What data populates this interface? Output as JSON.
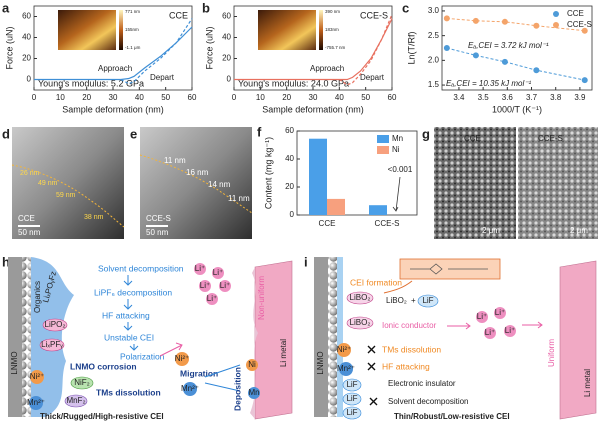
{
  "chart_data": [
    {
      "panel": "a",
      "type": "line",
      "label": "CCE",
      "annotation": "Young's modulus: 5.2 GPa",
      "xlabel": "Sample deformation (nm)",
      "ylabel": "Force (uN)",
      "x": [
        0,
        10,
        20,
        30,
        33,
        36,
        38,
        42,
        48,
        54,
        60
      ],
      "xlim": [
        0,
        60
      ],
      "xticks": [
        0,
        10,
        20,
        30,
        40,
        50,
        60
      ],
      "ylim": [
        -10,
        70
      ],
      "yticks": [
        0,
        20,
        40,
        60
      ],
      "series": [
        {
          "name": "Approach",
          "color": "#3f8fd6",
          "style": "solid",
          "values": [
            0,
            0,
            0,
            0,
            0,
            1,
            3,
            11,
            22,
            35,
            50
          ]
        },
        {
          "name": "Depart",
          "color": "#3f8fd6",
          "style": "dashed",
          "values": [
            null,
            null,
            null,
            null,
            0,
            -4,
            -2,
            8,
            20,
            35,
            58
          ]
        }
      ],
      "inset_labels": [
        "771 nm",
        "155nm",
        "-1.1 μm"
      ]
    },
    {
      "panel": "b",
      "type": "line",
      "label": "CCE-S",
      "annotation": "Young's modulus: 24.0 GPa",
      "xlabel": "Sample deformation (nm)",
      "ylabel": "Force (uN)",
      "x": [
        0,
        10,
        20,
        30,
        40,
        43,
        45,
        48,
        52,
        56,
        60
      ],
      "xlim": [
        0,
        60
      ],
      "xticks": [
        0,
        10,
        20,
        30,
        40,
        50,
        60
      ],
      "ylim": [
        -10,
        70
      ],
      "yticks": [
        0,
        20,
        40,
        60
      ],
      "series": [
        {
          "name": "Approach",
          "color": "#e8705f",
          "style": "solid",
          "values": [
            0,
            0,
            0,
            0,
            0,
            0,
            2,
            8,
            20,
            38,
            58
          ]
        },
        {
          "name": "Depart",
          "color": "#e8705f",
          "style": "dashed",
          "values": [
            null,
            null,
            null,
            null,
            0,
            -5,
            -3,
            5,
            18,
            38,
            62
          ]
        }
      ],
      "inset_labels": [
        "390 nm",
        "183nm",
        "-755.7 nm"
      ]
    },
    {
      "panel": "c",
      "type": "scatter",
      "xlabel": "1000/T (K⁻¹)",
      "ylabel": "Ln(T/Rf)",
      "x": [
        3.35,
        3.47,
        3.59,
        3.72,
        3.92
      ],
      "xlim": [
        3.33,
        3.95
      ],
      "xticks": [
        3.4,
        3.5,
        3.6,
        3.7,
        3.8,
        3.9
      ],
      "ylim": [
        1.4,
        3.1
      ],
      "yticks": [
        1.5,
        {
          "value": 2,
          "label": "2.0"
        },
        2.5,
        {
          "value": 3,
          "label": "3.0"
        }
      ],
      "legend": "upper right",
      "series": [
        {
          "name": "CCE",
          "color": "#4e9bd8",
          "style": "dashed",
          "values": [
            2.25,
            2.1,
            1.97,
            1.8,
            1.6
          ],
          "annotation": "Eₐ,CEI = 10.35 kJ mol⁻¹"
        },
        {
          "name": "CCE-S",
          "color": "#f4a46a",
          "style": "dashed",
          "values": [
            2.85,
            2.8,
            2.78,
            2.7,
            2.6
          ],
          "annotation": "Eₐ,CEI = 3.72 kJ mol⁻¹"
        }
      ]
    },
    {
      "panel": "f",
      "type": "bar",
      "ylabel": "Content (mg kg⁻¹)",
      "categories": [
        "CCE",
        "CCE-S"
      ],
      "ylim": [
        0,
        60
      ],
      "yticks": [
        0,
        20,
        40,
        60
      ],
      "legend": "upper right",
      "series": [
        {
          "name": "Mn",
          "color": "#4a9fe8",
          "values": [
            54.5,
            7
          ]
        },
        {
          "name": "Ni",
          "color": "#f7a07e",
          "values": [
            11.5,
            0.001
          ],
          "value_labels": [
            null,
            "<0.001"
          ]
        }
      ]
    }
  ],
  "panel_d": {
    "label": "d",
    "sample": "CCE",
    "scale_bar": "50 nm",
    "thickness": [
      "26 nm",
      "49 nm",
      "59 nm",
      "38 nm"
    ]
  },
  "panel_e": {
    "label": "e",
    "sample": "CCE-S",
    "scale_bar": "50 nm",
    "thickness": [
      "11 nm",
      "16 nm",
      "14 nm",
      "11 nm"
    ]
  },
  "panel_g": {
    "label": "g",
    "samples": [
      "CCE",
      "CCE-S"
    ],
    "scale_bars": [
      "2 μm",
      "2 μm"
    ]
  },
  "panel_h": {
    "label": "h",
    "cathode": "LNMO",
    "species": [
      "Organics",
      "LiₓPOᵧFz",
      "LiPO₂",
      "LiₓPFᵧ",
      "NiF₂",
      "MnF₂"
    ],
    "ions": [
      "Ni²⁺",
      "Mn²⁺",
      "Ni²⁺",
      "Mn²⁺",
      "Li⁺",
      "Li⁺",
      "Li⁺",
      "Li⁺",
      "Li⁺"
    ],
    "processes": [
      "Solvent decomposition",
      "LiPF₆ decomposition",
      "HF attacking",
      "Unstable CEI",
      "Polarization",
      "LNMO corrosion",
      "TMs dissolution",
      "Migration"
    ],
    "deposition": "Deposition",
    "deposits": [
      "Ni",
      "Mn"
    ],
    "deposit_morphology": "Non-uniform",
    "anode": "Li metal",
    "cei": "Thick/Rugged/High-resistive CEI"
  },
  "panel_i": {
    "label": "i",
    "cathode": "LNMO",
    "cei_formation": "CEI formation",
    "species": [
      "LiBO₂",
      "LiBO₂",
      "LiF",
      "LiF",
      "LiF"
    ],
    "reaction": [
      "LiBO₂",
      "+",
      "LiF"
    ],
    "ions": [
      "Ni²⁺",
      "Mn²⁺",
      "Li⁺",
      "Li⁺",
      "Li⁺",
      "Li⁺"
    ],
    "properties": [
      "Ionic conductor",
      "Electronic insulator"
    ],
    "suppressed": [
      "TMs dissolution",
      "HF attacking",
      "Solvent decomposition"
    ],
    "deposit_morphology": "Uniform",
    "anode": "Li metal",
    "cei": "Thin/Robust/Low-resistive CEI"
  }
}
